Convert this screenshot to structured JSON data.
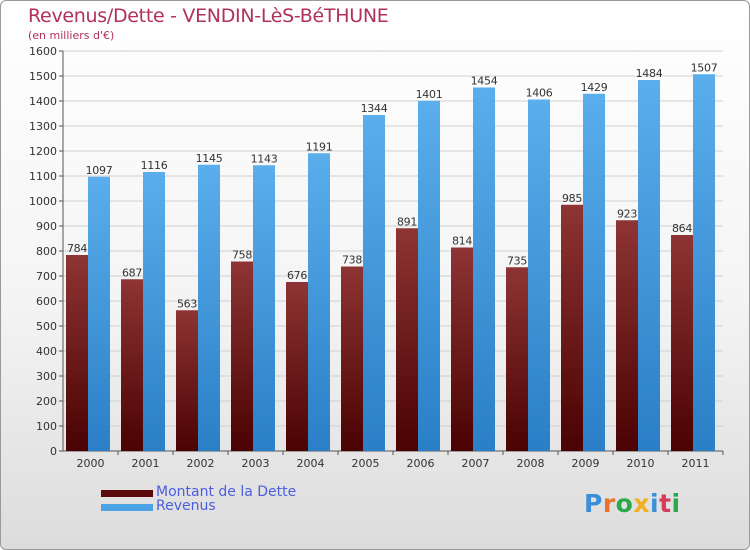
{
  "header": {
    "title": "Revenus/Dette - VENDIN-LèS-BéTHUNE",
    "subtitle": "(en milliers d'€)"
  },
  "chart_data": {
    "type": "bar",
    "categories": [
      "2000",
      "2001",
      "2002",
      "2003",
      "2004",
      "2005",
      "2006",
      "2007",
      "2008",
      "2009",
      "2010",
      "2011"
    ],
    "series": [
      {
        "name": "Montant de la Dette",
        "values": [
          784,
          687,
          563,
          758,
          676,
          738,
          891,
          814,
          735,
          985,
          923,
          864
        ],
        "color": "#7a1f1f"
      },
      {
        "name": "Revenus",
        "values": [
          1097,
          1116,
          1145,
          1143,
          1191,
          1344,
          1401,
          1454,
          1406,
          1429,
          1484,
          1507
        ],
        "color": "#4ba3e6"
      }
    ],
    "ylim": [
      0,
      1600
    ],
    "yticks": [
      0,
      100,
      200,
      300,
      400,
      500,
      600,
      700,
      800,
      900,
      1000,
      1100,
      1200,
      1300,
      1400,
      1500,
      1600
    ],
    "grid": true,
    "legend_position": "bottom-left"
  },
  "legend": {
    "items": [
      {
        "label": "Montant de la Dette",
        "color": "#5a0a0a"
      },
      {
        "label": "Revenus",
        "color": "#4ba3e6"
      }
    ]
  },
  "logo": {
    "text": "Proxiti"
  }
}
